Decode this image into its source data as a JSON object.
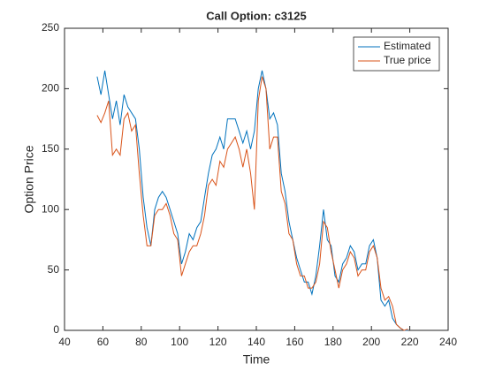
{
  "chart_data": {
    "type": "line",
    "title": "Call Option: c3125",
    "x_label": "Time",
    "y_label": "Option Price",
    "x": [
      57,
      59,
      61,
      63,
      65,
      67,
      69,
      71,
      73,
      75,
      77,
      79,
      81,
      83,
      85,
      87,
      89,
      91,
      93,
      95,
      97,
      99,
      101,
      103,
      105,
      107,
      109,
      111,
      113,
      115,
      117,
      119,
      121,
      123,
      125,
      127,
      129,
      131,
      133,
      135,
      137,
      139,
      141,
      143,
      145,
      147,
      149,
      151,
      153,
      155,
      157,
      159,
      161,
      163,
      165,
      167,
      169,
      171,
      173,
      175,
      177,
      179,
      181,
      183,
      185,
      187,
      189,
      191,
      193,
      195,
      197,
      199,
      201,
      203,
      205,
      207,
      209,
      211,
      213,
      215,
      217,
      219
    ],
    "series": [
      {
        "name": "Estimated",
        "color": "#0072BD",
        "values": [
          210,
          195,
          215,
          195,
          175,
          190,
          170,
          195,
          185,
          180,
          175,
          150,
          110,
          85,
          70,
          100,
          110,
          115,
          110,
          100,
          90,
          80,
          55,
          65,
          80,
          75,
          85,
          90,
          110,
          130,
          145,
          150,
          160,
          150,
          175,
          175,
          175,
          165,
          155,
          165,
          150,
          165,
          200,
          215,
          200,
          175,
          180,
          170,
          130,
          115,
          90,
          75,
          60,
          50,
          40,
          40,
          30,
          45,
          70,
          100,
          75,
          70,
          45,
          40,
          55,
          60,
          70,
          65,
          50,
          55,
          55,
          70,
          75,
          60,
          25,
          20,
          25,
          10,
          5,
          2,
          0,
          0
        ]
      },
      {
        "name": "True price",
        "color": "#D95319",
        "values": [
          178,
          172,
          180,
          190,
          145,
          150,
          145,
          175,
          180,
          165,
          170,
          130,
          95,
          70,
          70,
          95,
          100,
          100,
          105,
          95,
          80,
          75,
          45,
          55,
          65,
          70,
          70,
          80,
          95,
          120,
          125,
          120,
          140,
          135,
          150,
          155,
          160,
          150,
          135,
          150,
          130,
          100,
          190,
          210,
          200,
          150,
          160,
          160,
          115,
          105,
          80,
          75,
          55,
          45,
          45,
          35,
          35,
          40,
          55,
          90,
          85,
          65,
          50,
          35,
          50,
          55,
          65,
          60,
          45,
          50,
          50,
          65,
          70,
          60,
          35,
          25,
          28,
          20,
          5,
          2,
          0,
          1
        ]
      }
    ],
    "xlim": [
      40,
      240
    ],
    "xticks": [
      40,
      60,
      80,
      100,
      120,
      140,
      160,
      180,
      200,
      220,
      240
    ],
    "ylim": [
      0,
      250
    ],
    "yticks": [
      0,
      50,
      100,
      150,
      200,
      250
    ],
    "legend": "top-right"
  }
}
